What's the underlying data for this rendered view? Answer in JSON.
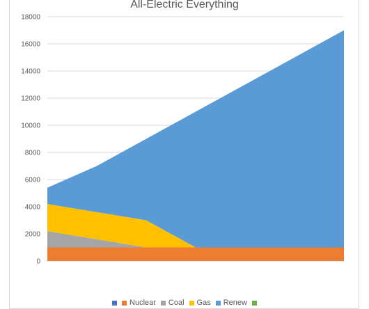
{
  "chart_data": {
    "type": "area",
    "stacked": true,
    "title": "All-Electric Everything",
    "xlabel": "",
    "ylabel": "",
    "ylim": [
      0,
      18000
    ],
    "yticks": [
      0,
      2000,
      4000,
      6000,
      8000,
      10000,
      12000,
      14000,
      16000,
      18000
    ],
    "x": [
      0,
      1,
      2,
      3,
      4,
      5,
      6
    ],
    "grid": true,
    "legend_position": "bottom",
    "series": [
      {
        "name": "",
        "color": "#4472c4",
        "values": [
          0,
          0,
          0,
          0,
          0,
          0,
          0
        ]
      },
      {
        "name": "Nuclear",
        "color": "#ed7d31",
        "values": [
          1000,
          1000,
          1000,
          1000,
          1000,
          1000,
          1000
        ]
      },
      {
        "name": "Coal",
        "color": "#a5a5a5",
        "values": [
          1200,
          600,
          0,
          0,
          0,
          0,
          0
        ]
      },
      {
        "name": "Gas",
        "color": "#ffc000",
        "values": [
          2000,
          2000,
          2000,
          0,
          0,
          0,
          0
        ]
      },
      {
        "name": "Renew",
        "color": "#5b9bd5",
        "values": [
          1200,
          3400,
          6000,
          10000,
          12000,
          14000,
          16000
        ]
      },
      {
        "name": "",
        "color": "#70ad47",
        "values": [
          0,
          0,
          0,
          0,
          0,
          0,
          0
        ]
      }
    ]
  }
}
